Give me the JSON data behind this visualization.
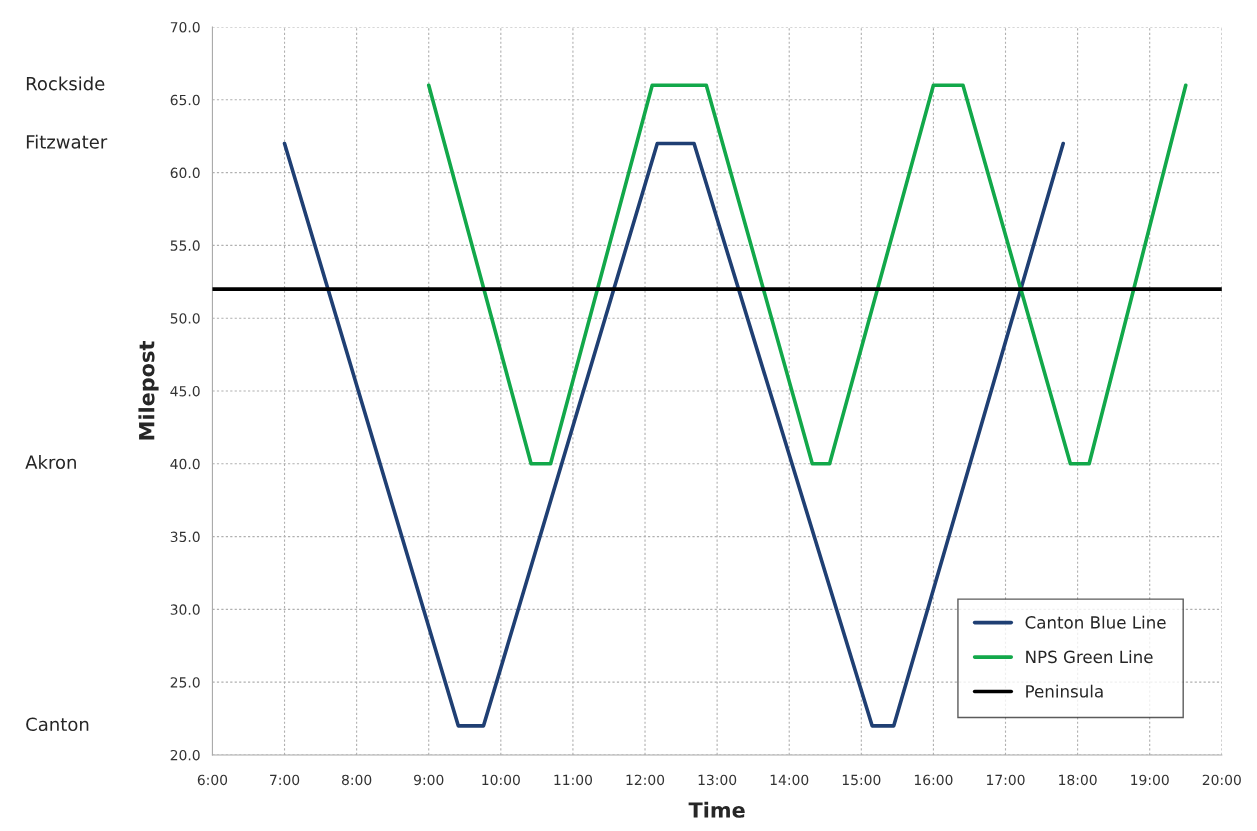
{
  "chart_data": {
    "type": "line",
    "xlabel": "Time",
    "ylabel": "Milepost",
    "series": [
      {
        "name": "Canton Blue Line",
        "color": "#1f3f73",
        "x": [
          7.0,
          9.41,
          9.76,
          12.17,
          12.68,
          15.15,
          15.45,
          17.8
        ],
        "values": [
          62,
          22,
          22,
          62,
          62,
          22,
          22,
          62
        ]
      },
      {
        "name": "NPS Green Line",
        "color": "#12a84a",
        "x": [
          9.0,
          10.42,
          10.69,
          12.1,
          12.85,
          14.32,
          14.56,
          16.0,
          16.41,
          17.9,
          18.16,
          19.5
        ],
        "values": [
          66,
          40,
          40,
          66,
          66,
          40,
          40,
          66,
          66,
          40,
          40,
          66
        ]
      },
      {
        "name": "Peninsula",
        "color": "#000000",
        "x": [
          6,
          20
        ],
        "values": [
          52,
          52
        ]
      }
    ],
    "annotations": [
      "Rockside",
      "Fitzwater",
      "Akron",
      "Canton"
    ],
    "xlim": [
      6,
      20
    ],
    "ylim": [
      20,
      70
    ],
    "xticks": [
      {
        "value": 6,
        "label": "6:00"
      },
      {
        "value": 7,
        "label": "7:00"
      },
      {
        "value": 8,
        "label": "8:00"
      },
      {
        "value": 9,
        "label": "9:00"
      },
      {
        "value": 10,
        "label": "10:00"
      },
      {
        "value": 11,
        "label": "11:00"
      },
      {
        "value": 12,
        "label": "12:00"
      },
      {
        "value": 13,
        "label": "13:00"
      },
      {
        "value": 14,
        "label": "14:00"
      },
      {
        "value": 15,
        "label": "15:00"
      },
      {
        "value": 16,
        "label": "16:00"
      },
      {
        "value": 17,
        "label": "17:00"
      },
      {
        "value": 18,
        "label": "18:00"
      },
      {
        "value": 19,
        "label": "19:00"
      },
      {
        "value": 20,
        "label": "20:00"
      }
    ],
    "yticks": [
      {
        "value": 20,
        "label": "20.0"
      },
      {
        "value": 25,
        "label": "25.0"
      },
      {
        "value": 30,
        "label": "30.0"
      },
      {
        "value": 35,
        "label": "35.0"
      },
      {
        "value": 40,
        "label": "40.0"
      },
      {
        "value": 45,
        "label": "45.0"
      },
      {
        "value": 50,
        "label": "50.0"
      },
      {
        "value": 55,
        "label": "55.0"
      },
      {
        "value": 60,
        "label": "60.0"
      },
      {
        "value": 65,
        "label": "65.0"
      },
      {
        "value": 70,
        "label": "70.0"
      }
    ],
    "grid": true,
    "legend": "bottom right",
    "marker": "none",
    "line_style": "solid"
  }
}
